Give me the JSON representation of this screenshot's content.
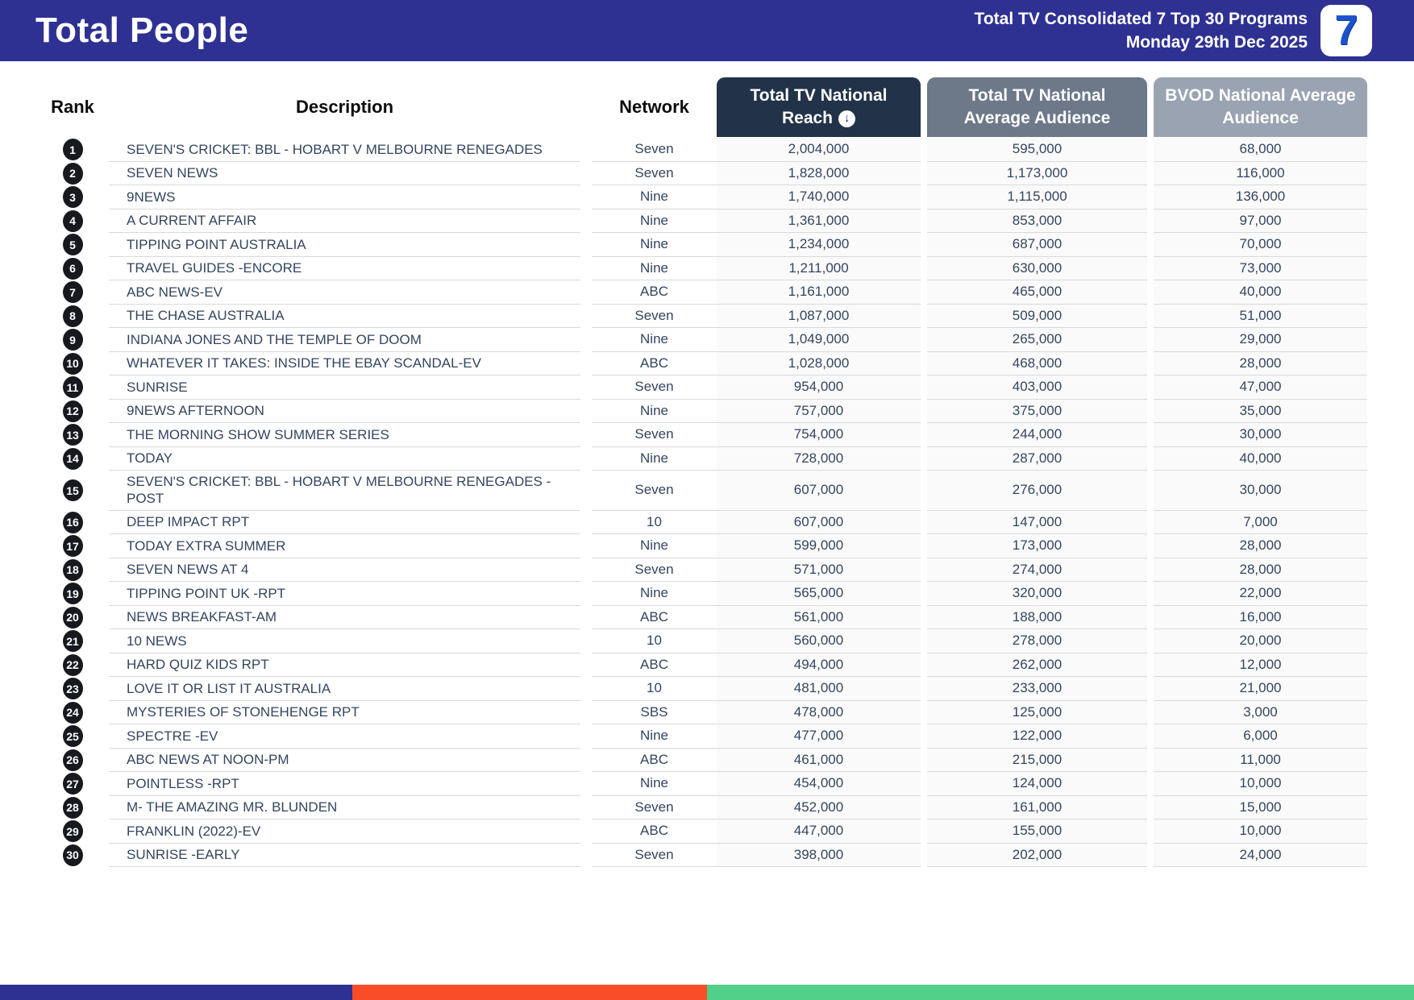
{
  "header": {
    "title": "Total People",
    "subtitle_line1": "Total TV Consolidated 7 Top 30 Programs",
    "subtitle_line2": "Monday 29th Dec 2025",
    "logo_text": "7",
    "bar_color": "#2e3192"
  },
  "table": {
    "columns": {
      "rank": "Rank",
      "description": "Description",
      "network": "Network",
      "reach_line1": "Total TV National",
      "reach_line2": "Reach",
      "avg": "Total TV National Average Audience",
      "bvod": "BVOD National Average Audience"
    },
    "sort_icon": "circle-down-arrow",
    "header_colors": {
      "reach": "#223349",
      "avg": "#6d7889",
      "bvod": "#9aa3b1"
    },
    "rows": [
      {
        "rank": "1",
        "description": "SEVEN'S CRICKET: BBL - HOBART V MELBOURNE RENEGADES",
        "network": "Seven",
        "reach": "2,004,000",
        "avg": "595,000",
        "bvod": "68,000"
      },
      {
        "rank": "2",
        "description": "SEVEN NEWS",
        "network": "Seven",
        "reach": "1,828,000",
        "avg": "1,173,000",
        "bvod": "116,000"
      },
      {
        "rank": "3",
        "description": "9NEWS",
        "network": "Nine",
        "reach": "1,740,000",
        "avg": "1,115,000",
        "bvod": "136,000"
      },
      {
        "rank": "4",
        "description": "A CURRENT AFFAIR",
        "network": "Nine",
        "reach": "1,361,000",
        "avg": "853,000",
        "bvod": "97,000"
      },
      {
        "rank": "5",
        "description": "TIPPING POINT AUSTRALIA",
        "network": "Nine",
        "reach": "1,234,000",
        "avg": "687,000",
        "bvod": "70,000"
      },
      {
        "rank": "6",
        "description": "TRAVEL GUIDES -ENCORE",
        "network": "Nine",
        "reach": "1,211,000",
        "avg": "630,000",
        "bvod": "73,000"
      },
      {
        "rank": "7",
        "description": "ABC NEWS-EV",
        "network": "ABC",
        "reach": "1,161,000",
        "avg": "465,000",
        "bvod": "40,000"
      },
      {
        "rank": "8",
        "description": "THE CHASE AUSTRALIA",
        "network": "Seven",
        "reach": "1,087,000",
        "avg": "509,000",
        "bvod": "51,000"
      },
      {
        "rank": "9",
        "description": "INDIANA JONES AND THE TEMPLE OF DOOM",
        "network": "Nine",
        "reach": "1,049,000",
        "avg": "265,000",
        "bvod": "29,000"
      },
      {
        "rank": "10",
        "description": "WHATEVER IT TAKES: INSIDE THE EBAY SCANDAL-EV",
        "network": "ABC",
        "reach": "1,028,000",
        "avg": "468,000",
        "bvod": "28,000"
      },
      {
        "rank": "11",
        "description": "SUNRISE",
        "network": "Seven",
        "reach": "954,000",
        "avg": "403,000",
        "bvod": "47,000"
      },
      {
        "rank": "12",
        "description": "9NEWS AFTERNOON",
        "network": "Nine",
        "reach": "757,000",
        "avg": "375,000",
        "bvod": "35,000"
      },
      {
        "rank": "13",
        "description": "THE MORNING SHOW SUMMER SERIES",
        "network": "Seven",
        "reach": "754,000",
        "avg": "244,000",
        "bvod": "30,000"
      },
      {
        "rank": "14",
        "description": "TODAY",
        "network": "Nine",
        "reach": "728,000",
        "avg": "287,000",
        "bvod": "40,000"
      },
      {
        "rank": "15",
        "description": "SEVEN'S CRICKET: BBL - HOBART V MELBOURNE RENEGADES - POST",
        "network": "Seven",
        "reach": "607,000",
        "avg": "276,000",
        "bvod": "30,000"
      },
      {
        "rank": "16",
        "description": "DEEP IMPACT RPT",
        "network": "10",
        "reach": "607,000",
        "avg": "147,000",
        "bvod": "7,000"
      },
      {
        "rank": "17",
        "description": "TODAY EXTRA SUMMER",
        "network": "Nine",
        "reach": "599,000",
        "avg": "173,000",
        "bvod": "28,000"
      },
      {
        "rank": "18",
        "description": "SEVEN NEWS AT 4",
        "network": "Seven",
        "reach": "571,000",
        "avg": "274,000",
        "bvod": "28,000"
      },
      {
        "rank": "19",
        "description": "TIPPING POINT UK -RPT",
        "network": "Nine",
        "reach": "565,000",
        "avg": "320,000",
        "bvod": "22,000"
      },
      {
        "rank": "20",
        "description": "NEWS BREAKFAST-AM",
        "network": "ABC",
        "reach": "561,000",
        "avg": "188,000",
        "bvod": "16,000"
      },
      {
        "rank": "21",
        "description": "10 NEWS",
        "network": "10",
        "reach": "560,000",
        "avg": "278,000",
        "bvod": "20,000"
      },
      {
        "rank": "22",
        "description": "HARD QUIZ KIDS RPT",
        "network": "ABC",
        "reach": "494,000",
        "avg": "262,000",
        "bvod": "12,000"
      },
      {
        "rank": "23",
        "description": "LOVE IT OR LIST IT AUSTRALIA",
        "network": "10",
        "reach": "481,000",
        "avg": "233,000",
        "bvod": "21,000"
      },
      {
        "rank": "24",
        "description": "MYSTERIES OF STONEHENGE RPT",
        "network": "SBS",
        "reach": "478,000",
        "avg": "125,000",
        "bvod": "3,000"
      },
      {
        "rank": "25",
        "description": "SPECTRE -EV",
        "network": "Nine",
        "reach": "477,000",
        "avg": "122,000",
        "bvod": "6,000"
      },
      {
        "rank": "26",
        "description": "ABC NEWS AT NOON-PM",
        "network": "ABC",
        "reach": "461,000",
        "avg": "215,000",
        "bvod": "11,000"
      },
      {
        "rank": "27",
        "description": "POINTLESS -RPT",
        "network": "Nine",
        "reach": "454,000",
        "avg": "124,000",
        "bvod": "10,000"
      },
      {
        "rank": "28",
        "description": "M- THE AMAZING MR. BLUNDEN",
        "network": "Seven",
        "reach": "452,000",
        "avg": "161,000",
        "bvod": "15,000"
      },
      {
        "rank": "29",
        "description": "FRANKLIN (2022)-EV",
        "network": "ABC",
        "reach": "447,000",
        "avg": "155,000",
        "bvod": "10,000"
      },
      {
        "rank": "30",
        "description": "SUNRISE -EARLY",
        "network": "Seven",
        "reach": "398,000",
        "avg": "202,000",
        "bvod": "24,000"
      }
    ]
  },
  "footer": {
    "segments": [
      {
        "name": "blue",
        "color": "#2e3192",
        "width_pct": 24.92
      },
      {
        "name": "orange",
        "color": "#f94d28",
        "width_pct": 25.08
      },
      {
        "name": "green",
        "color": "#50d088",
        "width_pct": 50.0
      }
    ]
  }
}
